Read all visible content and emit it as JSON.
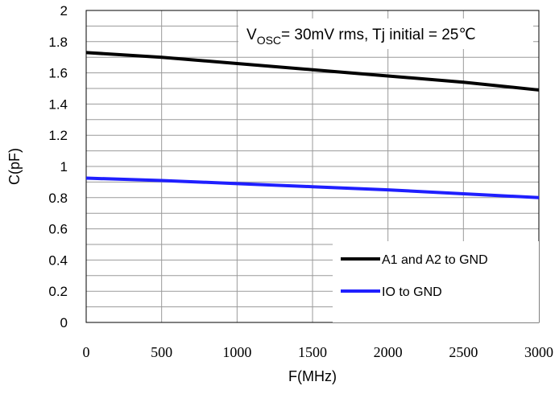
{
  "chart_data": {
    "type": "line",
    "xlabel": "F(MHz)",
    "ylabel": "C(pF)",
    "xlim": [
      0,
      3000
    ],
    "ylim": [
      0,
      2
    ],
    "x_ticks": [
      "0",
      "500",
      "1000",
      "1500",
      "2000",
      "2500",
      "3000"
    ],
    "y_ticks": [
      "0",
      "0.2",
      "0.4",
      "0.6",
      "0.8",
      "1",
      "1.2",
      "1.4",
      "1.6",
      "1.8",
      "2"
    ],
    "grid": true,
    "annotation": {
      "prefix": "V",
      "subscript": "OSC",
      "suffix": "= 30mV rms, Tj initial = 25℃"
    },
    "legend_position": "bottom-right",
    "series": [
      {
        "name": "A1 and A2 to GND",
        "color": "#000000",
        "x": [
          0,
          500,
          1000,
          1500,
          2000,
          2500,
          3000
        ],
        "y": [
          1.73,
          1.7,
          1.66,
          1.62,
          1.58,
          1.54,
          1.49
        ]
      },
      {
        "name": "IO to GND",
        "color": "#1f1fff",
        "x": [
          0,
          500,
          1000,
          1500,
          2000,
          2500,
          3000
        ],
        "y": [
          0.925,
          0.91,
          0.89,
          0.87,
          0.85,
          0.825,
          0.8
        ]
      }
    ]
  }
}
